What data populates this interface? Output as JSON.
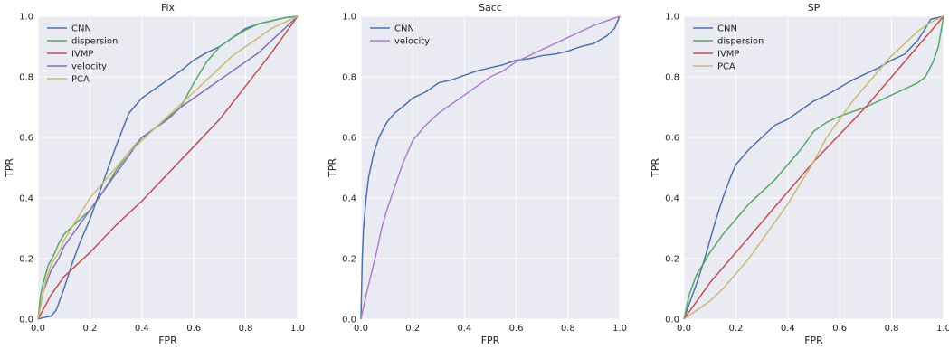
{
  "chart_data": [
    {
      "type": "line",
      "title": "Fix",
      "xlabel": "FPR",
      "ylabel": "TPR",
      "xlim": [
        0,
        1
      ],
      "ylim": [
        0,
        1
      ],
      "xticks": [
        "0.0",
        "0.2",
        "0.4",
        "0.6",
        "0.8",
        "1.0"
      ],
      "yticks": [
        "0.0",
        "0.2",
        "0.4",
        "0.6",
        "0.8",
        "1.0"
      ],
      "grid": true,
      "legend": "top-left",
      "series": [
        {
          "name": "CNN",
          "color": "#4c72b0",
          "x": [
            0,
            0.02,
            0.05,
            0.07,
            0.1,
            0.13,
            0.16,
            0.2,
            0.25,
            0.3,
            0.35,
            0.4,
            0.45,
            0.5,
            0.55,
            0.6,
            0.65,
            0.7,
            0.75,
            0.8,
            0.85,
            0.9,
            0.95,
            1.0
          ],
          "y": [
            0,
            0.005,
            0.01,
            0.03,
            0.1,
            0.18,
            0.25,
            0.33,
            0.45,
            0.57,
            0.68,
            0.73,
            0.76,
            0.79,
            0.82,
            0.855,
            0.88,
            0.9,
            0.93,
            0.96,
            0.975,
            0.985,
            0.995,
            1.0
          ]
        },
        {
          "name": "dispersion",
          "color": "#55a868",
          "x": [
            0,
            0.01,
            0.02,
            0.04,
            0.06,
            0.08,
            0.1,
            0.15,
            0.2,
            0.25,
            0.3,
            0.35,
            0.4,
            0.45,
            0.5,
            0.55,
            0.6,
            0.65,
            0.7,
            0.75,
            0.8,
            0.85,
            0.9,
            0.95,
            1.0
          ],
          "y": [
            0,
            0.08,
            0.12,
            0.18,
            0.21,
            0.25,
            0.28,
            0.32,
            0.36,
            0.42,
            0.49,
            0.55,
            0.6,
            0.63,
            0.665,
            0.7,
            0.78,
            0.85,
            0.9,
            0.93,
            0.955,
            0.975,
            0.985,
            0.995,
            1.0
          ]
        },
        {
          "name": "IVMP",
          "color": "#c44e52",
          "x": [
            0,
            0.05,
            0.1,
            0.15,
            0.2,
            0.3,
            0.4,
            0.5,
            0.6,
            0.7,
            0.8,
            0.9,
            1.0
          ],
          "y": [
            0,
            0.08,
            0.14,
            0.18,
            0.22,
            0.31,
            0.39,
            0.48,
            0.57,
            0.66,
            0.77,
            0.88,
            1.0
          ]
        },
        {
          "name": "velocity",
          "color": "#8172b2",
          "x": [
            0,
            0.02,
            0.05,
            0.08,
            0.1,
            0.15,
            0.2,
            0.25,
            0.3,
            0.35,
            0.4,
            0.45,
            0.5,
            0.55,
            0.6,
            0.65,
            0.7,
            0.75,
            0.8,
            0.85,
            0.9,
            0.95,
            1.0
          ],
          "y": [
            0,
            0.09,
            0.16,
            0.2,
            0.24,
            0.3,
            0.36,
            0.42,
            0.48,
            0.54,
            0.6,
            0.63,
            0.66,
            0.7,
            0.73,
            0.76,
            0.79,
            0.82,
            0.85,
            0.88,
            0.92,
            0.96,
            1.0
          ]
        },
        {
          "name": "PCA",
          "color": "#ccb974",
          "x": [
            0,
            0.03,
            0.05,
            0.08,
            0.1,
            0.15,
            0.2,
            0.25,
            0.3,
            0.35,
            0.4,
            0.45,
            0.5,
            0.55,
            0.6,
            0.65,
            0.7,
            0.75,
            0.8,
            0.85,
            0.9,
            0.95,
            1.0
          ],
          "y": [
            0,
            0.13,
            0.18,
            0.22,
            0.26,
            0.33,
            0.4,
            0.45,
            0.5,
            0.55,
            0.59,
            0.63,
            0.67,
            0.71,
            0.75,
            0.79,
            0.83,
            0.87,
            0.9,
            0.93,
            0.96,
            0.98,
            1.0
          ]
        }
      ]
    },
    {
      "type": "line",
      "title": "Sacc",
      "xlabel": "FPR",
      "ylabel": "TPR",
      "xlim": [
        0,
        1
      ],
      "ylim": [
        0,
        1
      ],
      "xticks": [
        "0.0",
        "0.2",
        "0.4",
        "0.6",
        "0.8",
        "1.0"
      ],
      "yticks": [
        "0.0",
        "0.2",
        "0.4",
        "0.6",
        "0.8",
        "1.0"
      ],
      "grid": true,
      "legend": "top-left",
      "series": [
        {
          "name": "CNN",
          "color": "#4c72b0",
          "x": [
            0,
            0.005,
            0.01,
            0.02,
            0.03,
            0.05,
            0.07,
            0.1,
            0.13,
            0.16,
            0.2,
            0.25,
            0.3,
            0.35,
            0.4,
            0.45,
            0.5,
            0.55,
            0.6,
            0.65,
            0.7,
            0.75,
            0.8,
            0.85,
            0.9,
            0.95,
            0.98,
            1.0
          ],
          "y": [
            0,
            0.2,
            0.3,
            0.4,
            0.47,
            0.55,
            0.6,
            0.65,
            0.68,
            0.7,
            0.73,
            0.75,
            0.78,
            0.79,
            0.805,
            0.82,
            0.83,
            0.84,
            0.855,
            0.86,
            0.87,
            0.875,
            0.885,
            0.9,
            0.91,
            0.935,
            0.96,
            1.0
          ]
        },
        {
          "name": "velocity",
          "color": "#b07dd0",
          "x": [
            0,
            0.02,
            0.04,
            0.06,
            0.08,
            0.1,
            0.12,
            0.14,
            0.16,
            0.18,
            0.2,
            0.25,
            0.3,
            0.35,
            0.4,
            0.45,
            0.5,
            0.55,
            0.6,
            0.65,
            0.7,
            0.75,
            0.8,
            0.85,
            0.9,
            0.95,
            1.0
          ],
          "y": [
            0,
            0.08,
            0.15,
            0.22,
            0.3,
            0.36,
            0.41,
            0.46,
            0.51,
            0.55,
            0.59,
            0.64,
            0.68,
            0.71,
            0.74,
            0.77,
            0.8,
            0.82,
            0.85,
            0.87,
            0.89,
            0.91,
            0.93,
            0.95,
            0.97,
            0.985,
            1.0
          ]
        }
      ]
    },
    {
      "type": "line",
      "title": "SP",
      "xlabel": "FPR",
      "ylabel": "TPR",
      "xlim": [
        0,
        1
      ],
      "ylim": [
        0,
        1
      ],
      "xticks": [
        "0.0",
        "0.2",
        "0.4",
        "0.6",
        "0.8",
        "1.0"
      ],
      "yticks": [
        "0.0",
        "0.2",
        "0.4",
        "0.6",
        "0.8",
        "1.0"
      ],
      "grid": true,
      "legend": "top-left",
      "series": [
        {
          "name": "CNN",
          "color": "#4c72b0",
          "x": [
            0,
            0.02,
            0.05,
            0.08,
            0.1,
            0.12,
            0.15,
            0.18,
            0.2,
            0.25,
            0.3,
            0.35,
            0.4,
            0.45,
            0.5,
            0.55,
            0.6,
            0.65,
            0.7,
            0.75,
            0.8,
            0.85,
            0.9,
            0.93,
            0.95,
            1.0
          ],
          "y": [
            0,
            0.05,
            0.12,
            0.2,
            0.26,
            0.32,
            0.4,
            0.47,
            0.51,
            0.56,
            0.6,
            0.64,
            0.66,
            0.69,
            0.72,
            0.74,
            0.765,
            0.79,
            0.81,
            0.83,
            0.855,
            0.875,
            0.92,
            0.96,
            0.99,
            1.0
          ]
        },
        {
          "name": "dispersion",
          "color": "#55a868",
          "x": [
            0,
            0.02,
            0.05,
            0.08,
            0.1,
            0.15,
            0.2,
            0.25,
            0.3,
            0.35,
            0.4,
            0.45,
            0.5,
            0.55,
            0.6,
            0.65,
            0.7,
            0.75,
            0.8,
            0.85,
            0.9,
            0.93,
            0.96,
            0.98,
            1.0
          ],
          "y": [
            0,
            0.08,
            0.15,
            0.19,
            0.22,
            0.28,
            0.33,
            0.38,
            0.42,
            0.46,
            0.51,
            0.56,
            0.62,
            0.65,
            0.67,
            0.685,
            0.7,
            0.72,
            0.74,
            0.76,
            0.78,
            0.8,
            0.85,
            0.9,
            1.0
          ]
        },
        {
          "name": "IVMP",
          "color": "#c44e52",
          "x": [
            0,
            0.05,
            0.1,
            0.2,
            0.3,
            0.4,
            0.5,
            0.6,
            0.7,
            0.8,
            0.9,
            1.0
          ],
          "y": [
            0,
            0.06,
            0.12,
            0.22,
            0.32,
            0.42,
            0.52,
            0.61,
            0.7,
            0.8,
            0.9,
            1.0
          ]
        },
        {
          "name": "PCA",
          "color": "#ccb974",
          "x": [
            0,
            0.05,
            0.1,
            0.15,
            0.2,
            0.25,
            0.3,
            0.35,
            0.4,
            0.45,
            0.5,
            0.55,
            0.6,
            0.65,
            0.7,
            0.75,
            0.8,
            0.85,
            0.9,
            0.95,
            1.0
          ],
          "y": [
            0,
            0.03,
            0.06,
            0.1,
            0.15,
            0.2,
            0.26,
            0.32,
            0.38,
            0.45,
            0.52,
            0.6,
            0.66,
            0.72,
            0.77,
            0.82,
            0.87,
            0.91,
            0.95,
            0.98,
            1.0
          ]
        }
      ]
    }
  ]
}
